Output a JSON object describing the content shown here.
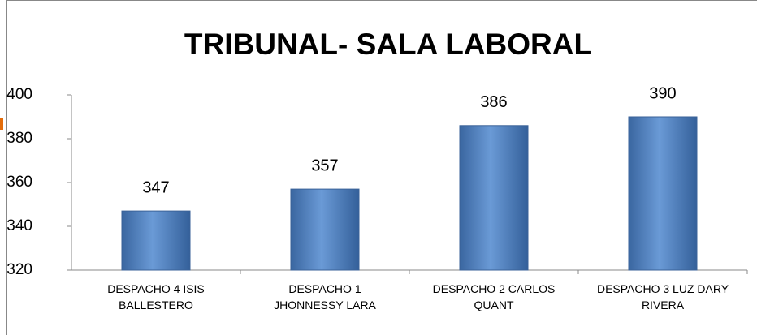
{
  "chart_data": {
    "type": "bar",
    "title": "TRIBUNAL- SALA LABORAL",
    "categories": [
      "DESPACHO 4 ISIS\nBALLESTERO",
      "DESPACHO 1\nJHONNESSY LARA",
      "DESPACHO 2 CARLOS\nQUANT",
      "DESPACHO 3 LUZ DARY\nRIVERA"
    ],
    "values": [
      347,
      357,
      386,
      390
    ],
    "color": "#4f81bd",
    "ylim": [
      320,
      400
    ],
    "yticks": [
      320,
      340,
      360,
      380,
      400
    ],
    "grid": false
  }
}
